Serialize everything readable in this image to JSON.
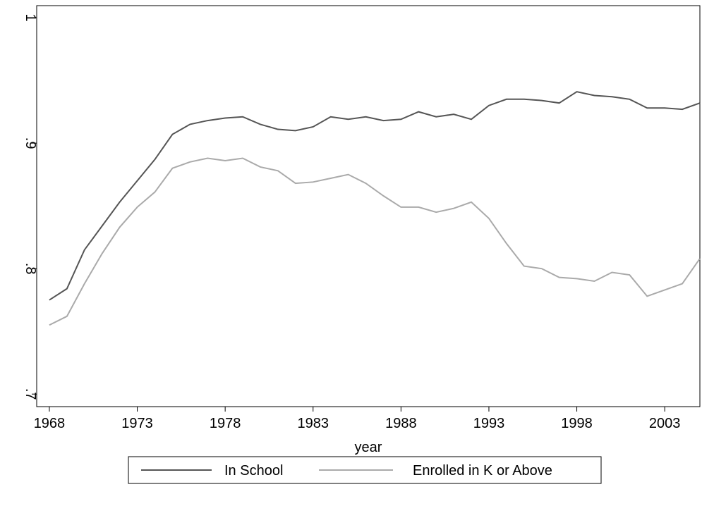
{
  "chart_data": {
    "type": "line",
    "x_label": "year",
    "x": [
      1968,
      1969,
      1970,
      1971,
      1972,
      1973,
      1974,
      1975,
      1976,
      1977,
      1978,
      1979,
      1980,
      1981,
      1982,
      1983,
      1984,
      1985,
      1986,
      1987,
      1988,
      1989,
      1990,
      1991,
      1992,
      1993,
      1994,
      1995,
      1996,
      1997,
      1998,
      1999,
      2000,
      2001,
      2002,
      2003,
      2004,
      2005
    ],
    "series": [
      {
        "name": "In School",
        "color": "#555555",
        "values": [
          0.775,
          0.784,
          0.815,
          0.834,
          0.853,
          0.87,
          0.887,
          0.907,
          0.915,
          0.918,
          0.92,
          0.921,
          0.915,
          0.911,
          0.91,
          0.913,
          0.921,
          0.919,
          0.921,
          0.918,
          0.919,
          0.925,
          0.921,
          0.923,
          0.919,
          0.93,
          0.935,
          0.935,
          0.934,
          0.932,
          0.941,
          0.938,
          0.937,
          0.935,
          0.928,
          0.928,
          0.927,
          0.932
        ]
      },
      {
        "name": "Enrolled in K or Above",
        "color": "#aaaaaa",
        "values": [
          0.755,
          0.762,
          0.788,
          0.812,
          0.833,
          0.849,
          0.861,
          0.88,
          0.885,
          0.888,
          0.886,
          0.888,
          0.881,
          0.878,
          0.868,
          0.869,
          0.872,
          0.875,
          0.868,
          0.858,
          0.849,
          0.849,
          0.845,
          0.848,
          0.853,
          0.84,
          0.82,
          0.802,
          0.8,
          0.793,
          0.792,
          0.79,
          0.797,
          0.795,
          0.778,
          0.783,
          0.788,
          0.808
        ]
      }
    ],
    "xlim": [
      1967.28,
      2005
    ],
    "xticks": [
      1968,
      1973,
      1978,
      1983,
      1988,
      1993,
      1998,
      2003
    ],
    "ylim": [
      0.69,
      1.0096
    ],
    "yticks": [
      {
        "value": 0.7,
        "label": ".7"
      },
      {
        "value": 0.8,
        "label": ".8"
      },
      {
        "value": 0.9,
        "label": ".9"
      },
      {
        "value": 1,
        "label": "1"
      }
    ],
    "legend": "bottom"
  }
}
